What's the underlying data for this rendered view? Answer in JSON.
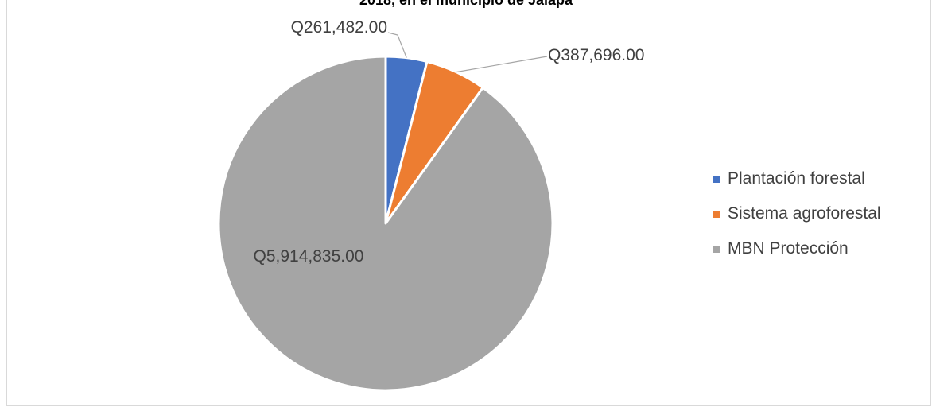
{
  "chart_data": {
    "type": "pie",
    "title": "2018, en el municipio de Jalapa",
    "categories": [
      "Plantación forestal",
      "Sistema agroforestal",
      "MBN Protección"
    ],
    "values": [
      261482.0,
      387696.0,
      5914835.0
    ],
    "data_labels": [
      "Q261,482.00",
      "Q387,696.00",
      "Q5,914,835.00"
    ],
    "colors": [
      "#4472c4",
      "#ed7d31",
      "#a5a5a5"
    ],
    "legend_position": "right"
  }
}
